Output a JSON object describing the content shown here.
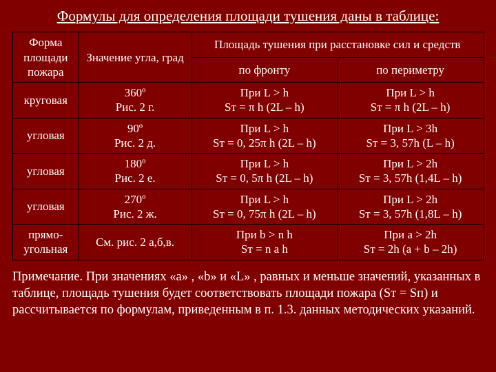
{
  "title": "Формулы для определения площади тушения даны в таблице:",
  "header": {
    "shape": "Форма площади пожара",
    "angle": "Значение угла, град",
    "area_span": "Площадь тушения при расстановке сил и средств",
    "front": "по фронту",
    "perimeter": "по периметру"
  },
  "rows": [
    {
      "shape": "круговая",
      "angle_l1": "360º",
      "angle_l2": "Рис. 2 г.",
      "front_l1": "При L > h",
      "front_l2": "Sт = π h (2L – h)",
      "perim_l1": "При L > h",
      "perim_l2": "Sт = π h (2L – h)"
    },
    {
      "shape": "угловая",
      "angle_l1": "90º",
      "angle_l2": "Рис. 2 д.",
      "front_l1": "При L > h",
      "front_l2": "Sт = 0, 25π h (2L – h)",
      "perim_l1": "При L > 3h",
      "perim_l2": "Sт = 3, 57h (L – h)"
    },
    {
      "shape": "угловая",
      "angle_l1": "180º",
      "angle_l2": "Рис. 2 е.",
      "front_l1": "При L > h",
      "front_l2": "Sт = 0, 5π h (2L – h)",
      "perim_l1": "При L > 2h",
      "perim_l2": "Sт = 3, 57h (1,4L – h)"
    },
    {
      "shape": "угловая",
      "angle_l1": "270º",
      "angle_l2": "Рис. 2 ж.",
      "front_l1": "При L > h",
      "front_l2": "Sт = 0, 75π h (2L – h)",
      "perim_l1": "При L > 2h",
      "perim_l2": "Sт = 3, 57h (1,8L – h)"
    },
    {
      "shape": "прямо-угольная",
      "angle_l1": "См. рис. 2 а,б,в.",
      "angle_l2": "",
      "front_l1": "При b > n h",
      "front_l2": "Sт = n a h",
      "perim_l1": "При a > 2h",
      "perim_l2": "Sт = 2h (a + b – 2h)"
    }
  ],
  "note": "Примечание. При значениях «a» , «b» и «L» , равных и меньше значений, указанных в таблице, площадь тушения будет соответствовать площади пожара (Sт = Sп) и рассчитывается по формулам, приведенным в п. 1.3. данных методических указаний."
}
